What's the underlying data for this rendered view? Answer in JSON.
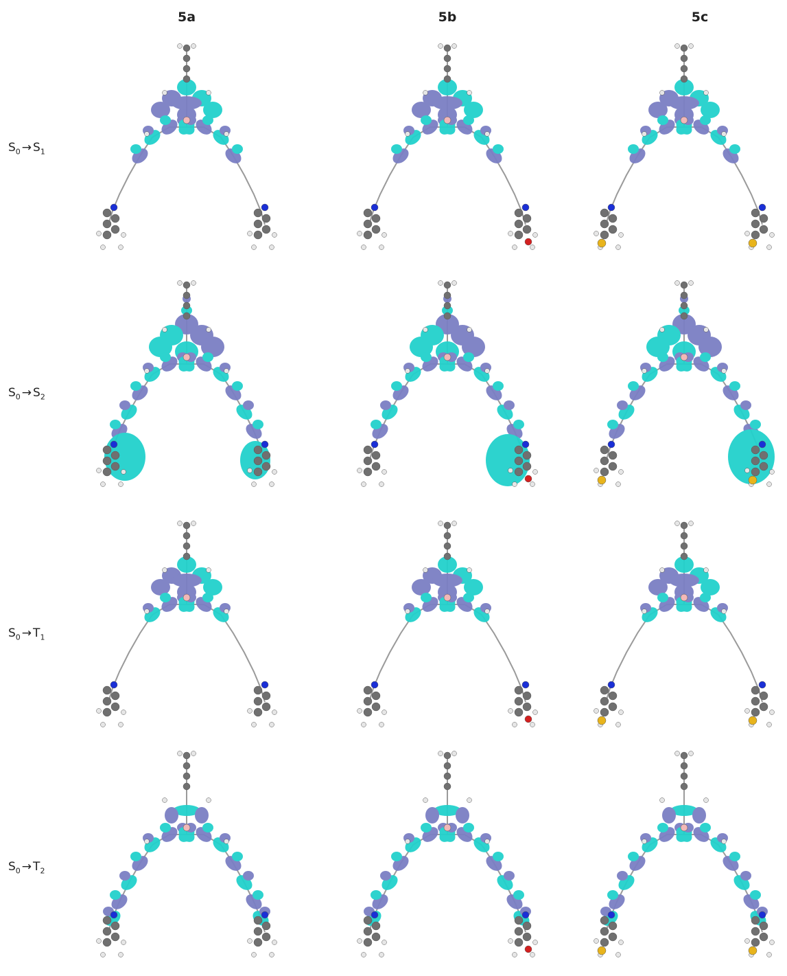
{
  "columns": [
    {
      "id": "5a",
      "label": "5a"
    },
    {
      "id": "5b",
      "label": "5b"
    },
    {
      "id": "5c",
      "label": "5c"
    }
  ],
  "rows": [
    {
      "id": "s0-s1",
      "from": "S",
      "from_sub": "0",
      "arrow": "→",
      "to": "S",
      "to_sub": "1"
    },
    {
      "id": "s0-s2",
      "from": "S",
      "from_sub": "0",
      "arrow": "→",
      "to": "S",
      "to_sub": "2"
    },
    {
      "id": "s0-t1",
      "from": "S",
      "from_sub": "0",
      "arrow": "→",
      "to": "T",
      "to_sub": "1"
    },
    {
      "id": "s0-t2",
      "from": "S",
      "from_sub": "0",
      "arrow": "→",
      "to": "T",
      "to_sub": "2"
    }
  ],
  "colors": {
    "lobe_purple": "#7b7fc4",
    "lobe_cyan": "#22d1cc",
    "carbon": "#707070",
    "hydrogen": "#e6e6e6",
    "nitrogen": "#1a2fd6",
    "oxygen": "#d32020",
    "sulfur": "#e8b41c",
    "boron": "#f2b8b8"
  }
}
